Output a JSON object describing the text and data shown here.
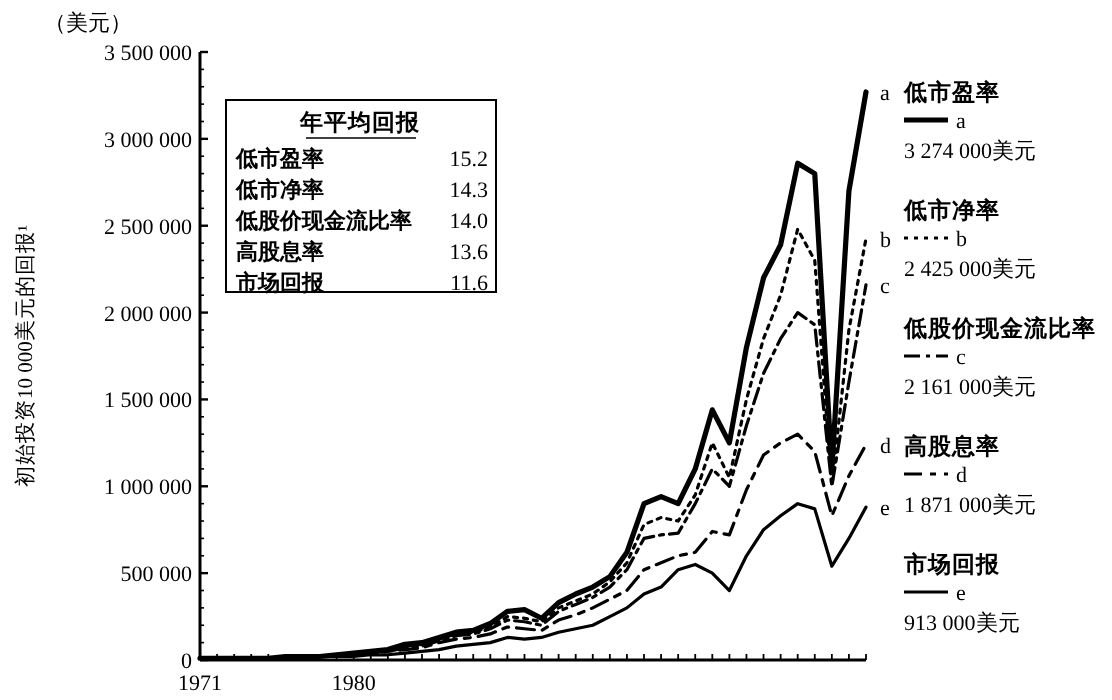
{
  "chart_data": {
    "type": "line",
    "ylabel": "初始投资10 000美元的回报¹",
    "x": [
      1971,
      1972,
      1973,
      1974,
      1975,
      1976,
      1977,
      1978,
      1979,
      1980,
      1981,
      1982,
      1983,
      1984,
      1985,
      1986,
      1987,
      1988,
      1989,
      1990,
      1991,
      1992,
      1993,
      1994,
      1995,
      1996,
      1997,
      1998,
      1999,
      2000,
      2001,
      2002,
      2003,
      2004,
      2005,
      2006,
      2007,
      2008,
      2009,
      2010
    ],
    "series": [
      {
        "name": "低市盈率",
        "color": "#000000",
        "line_style": "solid",
        "values": [
          10000,
          10000,
          10000,
          10000,
          10000,
          20000,
          20000,
          20000,
          30000,
          40000,
          50000,
          60000,
          90000,
          100000,
          130000,
          160000,
          170000,
          210000,
          280000,
          290000,
          240000,
          330000,
          380000,
          420000,
          480000,
          620000,
          900000,
          940000,
          900000,
          1100000,
          1440000,
          1250000,
          1800000,
          2200000,
          2390000,
          2860000,
          2800000,
          1100000,
          2700000,
          3270000
        ]
      },
      {
        "name": "低市净率",
        "color": "#000000",
        "line_style": "dotted",
        "values": [
          10000,
          10000,
          10000,
          10000,
          10000,
          20000,
          20000,
          20000,
          30000,
          40000,
          40000,
          60000,
          80000,
          90000,
          120000,
          150000,
          160000,
          190000,
          250000,
          240000,
          220000,
          300000,
          340000,
          380000,
          450000,
          560000,
          780000,
          820000,
          800000,
          950000,
          1250000,
          1050000,
          1500000,
          1850000,
          2100000,
          2480000,
          2300000,
          1000000,
          1900000,
          2425000
        ]
      },
      {
        "name": "低股价现金流比率",
        "color": "#000000",
        "line_style": "dashed",
        "values": [
          10000,
          10000,
          10000,
          10000,
          10000,
          20000,
          20000,
          20000,
          30000,
          30000,
          40000,
          50000,
          70000,
          80000,
          110000,
          140000,
          150000,
          180000,
          230000,
          220000,
          200000,
          280000,
          320000,
          360000,
          420000,
          520000,
          700000,
          720000,
          730000,
          900000,
          1100000,
          1000000,
          1350000,
          1650000,
          1850000,
          2000000,
          1930000,
          1000000,
          1600000,
          2160000
        ]
      },
      {
        "name": "高股息率",
        "color": "#000000",
        "line_style": "dashed",
        "values": [
          10000,
          10000,
          10000,
          10000,
          10000,
          10000,
          20000,
          20000,
          30000,
          30000,
          40000,
          50000,
          60000,
          70000,
          100000,
          120000,
          130000,
          150000,
          190000,
          180000,
          170000,
          230000,
          260000,
          300000,
          350000,
          400000,
          520000,
          560000,
          600000,
          620000,
          740000,
          720000,
          980000,
          1180000,
          1250000,
          1300000,
          1200000,
          830000,
          1060000,
          1240000
        ]
      },
      {
        "name": "市场回报",
        "color": "#000000",
        "line_style": "solid",
        "values": [
          10000,
          10000,
          10000,
          10000,
          10000,
          10000,
          10000,
          20000,
          20000,
          20000,
          30000,
          30000,
          40000,
          50000,
          60000,
          80000,
          90000,
          100000,
          130000,
          120000,
          130000,
          160000,
          180000,
          200000,
          250000,
          300000,
          380000,
          420000,
          520000,
          550000,
          500000,
          400000,
          600000,
          750000,
          830000,
          900000,
          870000,
          540000,
          700000,
          880000
        ]
      }
    ],
    "xlim": [
      1971,
      2010
    ],
    "xticks": [
      1971,
      1980
    ],
    "ylim": [
      0,
      3500000
    ],
    "yticks": [
      {
        "value": 0,
        "label": "0"
      },
      {
        "value": 500000,
        "label": "500 000"
      },
      {
        "value": 1000000,
        "label": "1 000 000"
      },
      {
        "value": 1500000,
        "label": "1 500 000"
      },
      {
        "value": 2000000,
        "label": "2 000 000"
      },
      {
        "value": 2500000,
        "label": "2 500 000"
      },
      {
        "value": 3000000,
        "label": "3 000 000"
      },
      {
        "value": 3500000,
        "label": "3 500 000"
      }
    ],
    "legend": "right",
    "annotations": [
      "（美元）",
      "年平均回报",
      "15.2",
      "14.3",
      "14.0",
      "13.6",
      "11.6",
      "a",
      "b",
      "c",
      "d",
      "e",
      "3 274 000美元",
      "2 425 000美元",
      "2 161 000美元",
      "1 871 000美元",
      "913 000美元"
    ]
  }
}
